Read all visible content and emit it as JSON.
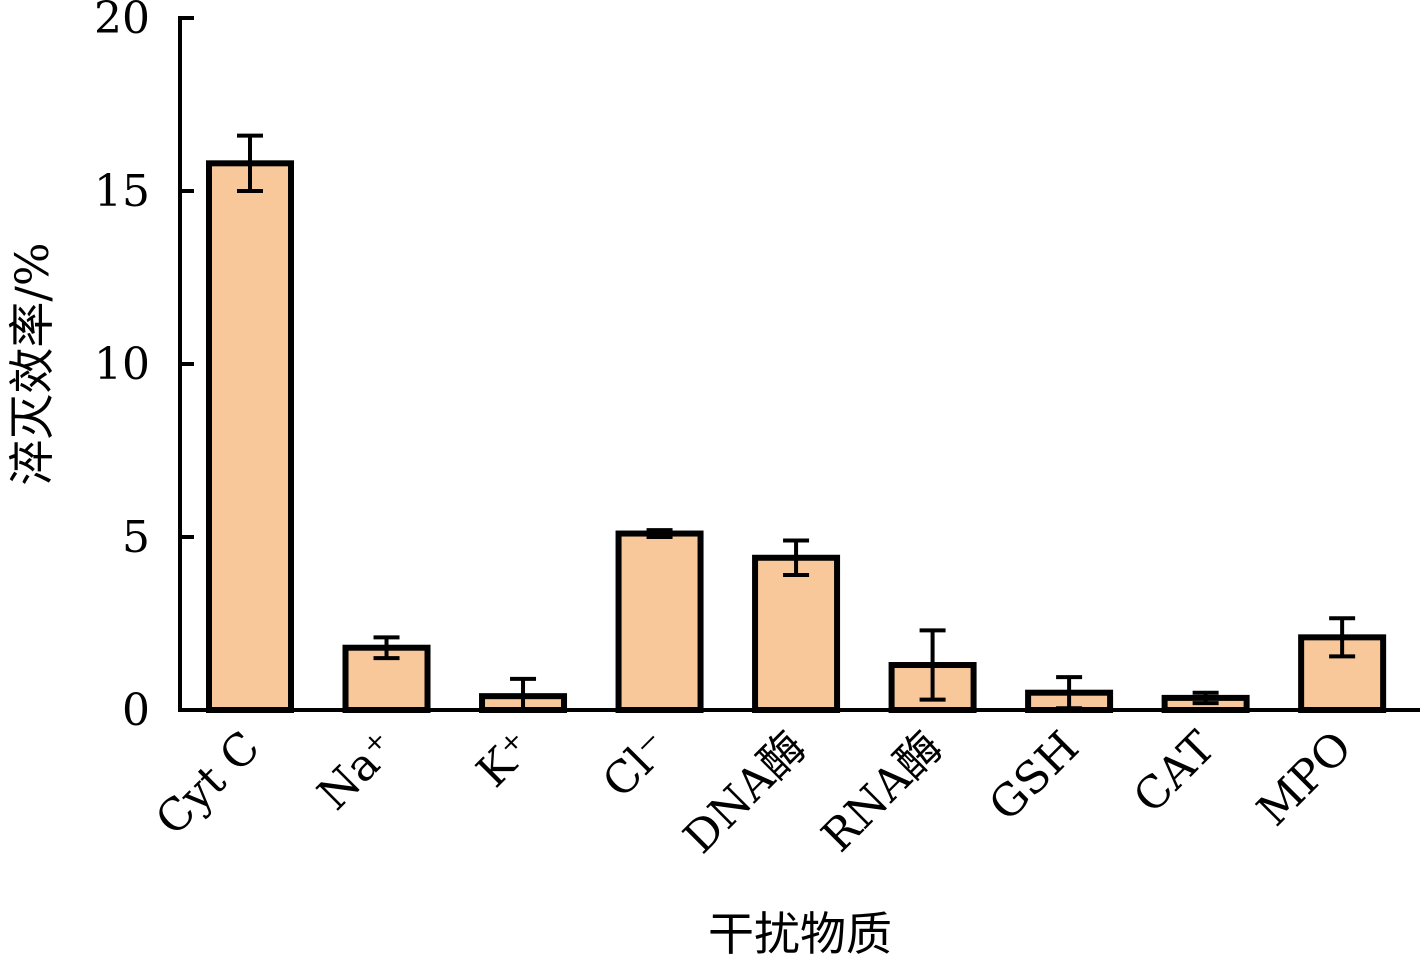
{
  "chart_data": {
    "type": "bar",
    "title": "",
    "xlabel": "干扰物质",
    "ylabel": "淬灭效率/%",
    "categories": [
      "Cyt C",
      "Na⁺",
      "K⁺",
      "Cl⁻",
      "DNA酶",
      "RNA酶",
      "GSH",
      "CAT",
      "MPO"
    ],
    "values": [
      15.8,
      1.8,
      0.4,
      5.1,
      4.4,
      1.3,
      0.5,
      0.35,
      2.1
    ],
    "errors": [
      0.8,
      0.3,
      0.5,
      0.1,
      0.5,
      1.0,
      0.45,
      0.15,
      0.55
    ],
    "ylim": [
      0,
      20
    ],
    "yticks": [
      "0",
      "5",
      "10",
      "15",
      "20"
    ],
    "grid": false,
    "colors": {
      "bar_fill": "#f8c79a",
      "bar_stroke": "#000000",
      "axis": "#000000"
    }
  }
}
